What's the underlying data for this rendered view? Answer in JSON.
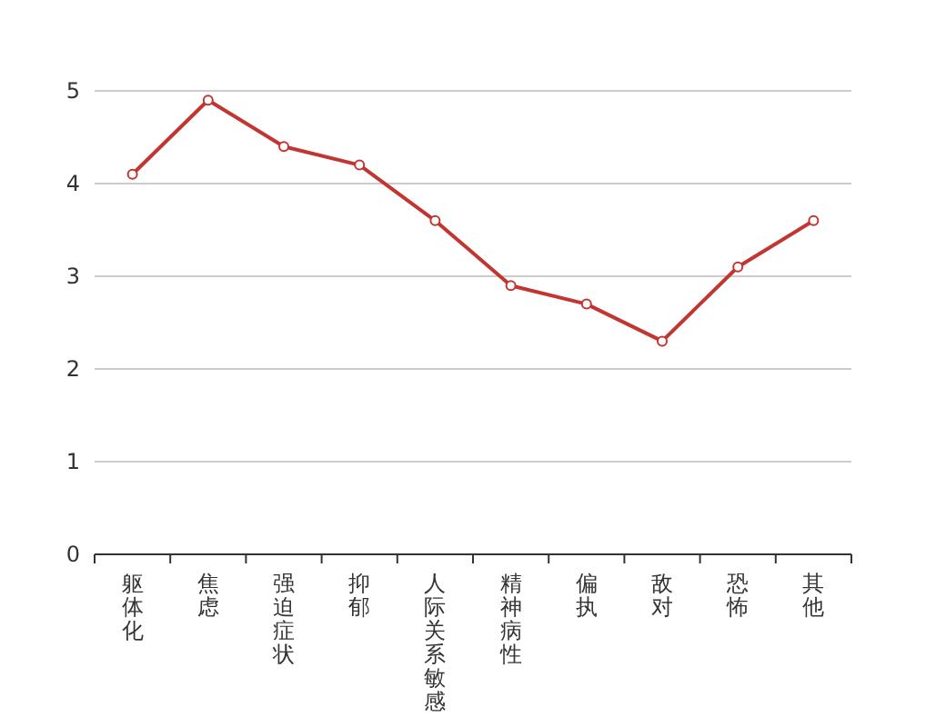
{
  "chart_data": {
    "type": "line",
    "categories": [
      "躯体化",
      "焦虑",
      "强迫症状",
      "抑郁",
      "人际关系敏感",
      "精神病性",
      "偏执",
      "敌对",
      "恐怖",
      "其他"
    ],
    "series": [
      {
        "color": "#c23531",
        "values": [
          4.1,
          4.9,
          4.4,
          4.2,
          3.6,
          2.9,
          2.7,
          2.3,
          3.1,
          3.6
        ]
      }
    ],
    "ylim": [
      0,
      5
    ],
    "yticks": [
      0,
      1,
      2,
      3,
      4,
      5
    ],
    "grid": "y",
    "marker": "circle",
    "line_style": "solid"
  }
}
